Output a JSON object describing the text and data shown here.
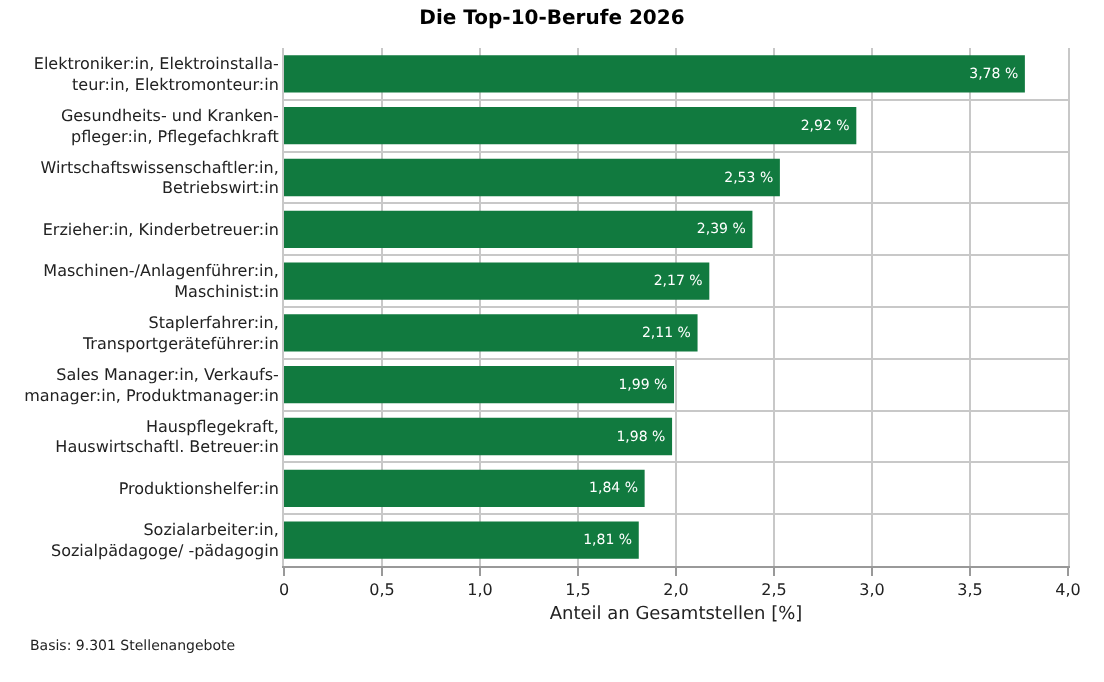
{
  "chart_data": {
    "type": "bar",
    "orientation": "horizontal",
    "title": "Die Top-10-Berufe 2026",
    "xlabel": "Anteil an Gesamtstellen [%]",
    "categories": [
      "Elektroniker:in, Elektroinstalla-\nteur:in, Elektromonteur:in",
      "Gesundheits- und Kranken-\npfleger:in, Pflegefachkraft",
      "Wirtschaftswissenschaftler:in,\nBetriebswirt:in",
      "Erzieher:in, Kinderbetreuer:in",
      "Maschinen-/Anlagenführer:in,\nMaschinist:in",
      "Staplerfahrer:in,\nTransportgeräteführer:in",
      "Sales Manager:in, Verkaufs-\nmanager:in, Produktmanager:in",
      "Hauspflegekraft,\nHauswirtschaftl. Betreuer:in",
      "Produktionshelfer:in",
      "Sozialarbeiter:in,\nSozialpädagoge/ -pädagogin"
    ],
    "values": [
      3.78,
      2.92,
      2.53,
      2.39,
      2.17,
      2.11,
      1.99,
      1.98,
      1.84,
      1.81
    ],
    "value_labels": [
      "3,78 %",
      "2,92 %",
      "2,53 %",
      "2,39 %",
      "2,17 %",
      "2,11 %",
      "1,99 %",
      "1,98 %",
      "1,84 %",
      "1,81 %"
    ],
    "color": "#117a3f",
    "xlim": [
      0,
      4.0
    ],
    "xticks": [
      0,
      {
        "value": 0.5,
        "label": "0,5"
      },
      {
        "value": 1.0,
        "label": "1,0"
      },
      {
        "value": 1.5,
        "label": "1,5"
      },
      {
        "value": 2.0,
        "label": "2,0"
      },
      {
        "value": 2.5,
        "label": "2,5"
      },
      {
        "value": 3.0,
        "label": "3,0"
      },
      {
        "value": 3.5,
        "label": "3,5"
      },
      {
        "value": 4.0,
        "label": "4,0"
      }
    ],
    "grid": true,
    "annotations": [
      "Basis: 9.301 Stellenangebote"
    ]
  }
}
